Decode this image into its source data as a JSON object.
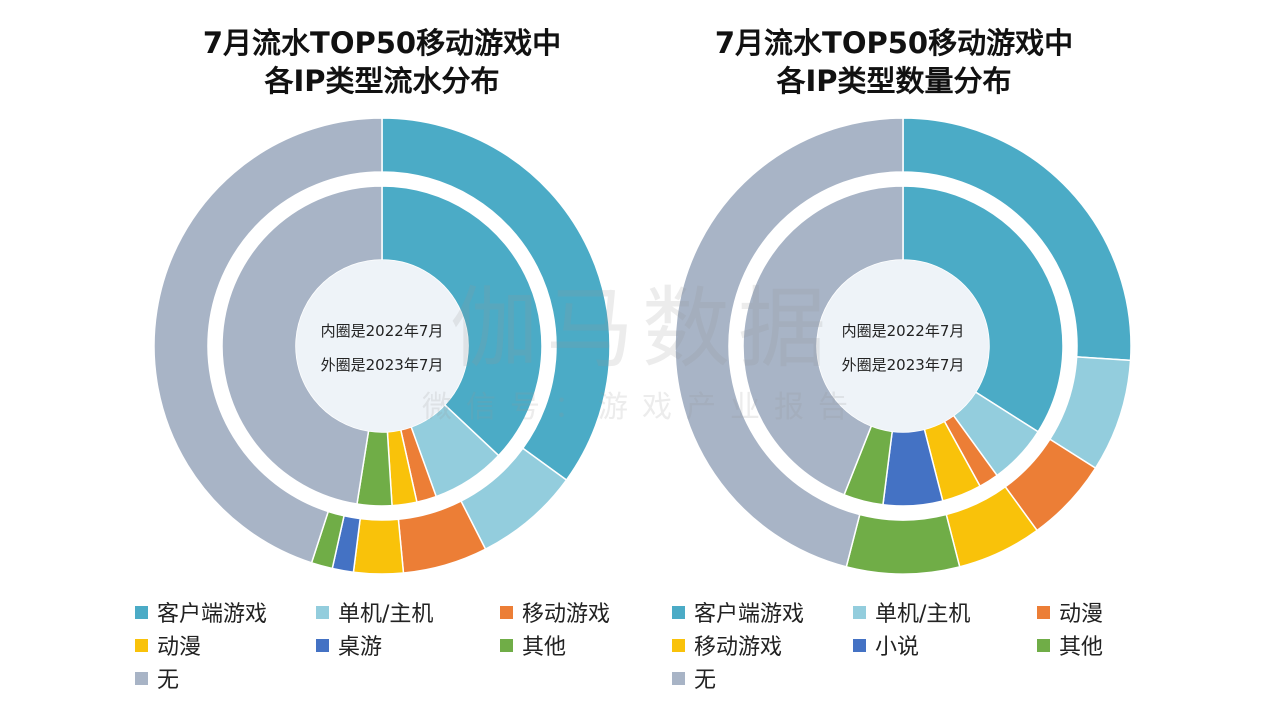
{
  "watermark": {
    "main": "伽马数据",
    "sub": "微信号：游戏产业报告"
  },
  "chart_data": [
    {
      "type": "donut",
      "title_line1": "7月流水TOP50移动游戏中",
      "title_line2": "各IP类型流水分布",
      "center_text": [
        "内圈是2022年7月",
        "外圈是2023年7月"
      ],
      "legend": [
        "客户端游戏",
        "单机/主机",
        "移动游戏",
        "动漫",
        "桌游",
        "其他",
        "无"
      ],
      "colors": [
        "#4BABC6",
        "#93CDDD",
        "#EC7E36",
        "#F9C20A",
        "#4472C4",
        "#70AD47",
        "#A8B4C6"
      ],
      "series": [
        {
          "name": "内圈是2022年7月",
          "labels": [
            "客户端游戏",
            "单机/主机",
            "移动游戏",
            "动漫",
            "桌游",
            "其他",
            "无"
          ],
          "values": [
            37.0,
            7.5,
            2.0,
            2.5,
            0,
            3.5,
            47.5
          ]
        },
        {
          "name": "外圈是2023年7月",
          "labels": [
            "客户端游戏",
            "单机/主机",
            "移动游戏",
            "动漫",
            "桌游",
            "其他",
            "无"
          ],
          "values": [
            35.0,
            7.5,
            6.0,
            3.5,
            1.5,
            1.5,
            45.0
          ]
        }
      ]
    },
    {
      "type": "donut",
      "title_line1": "7月流水TOP50移动游戏中",
      "title_line2": "各IP类型数量分布",
      "center_text": [
        "内圈是2022年7月",
        "外圈是2023年7月"
      ],
      "legend": [
        "客户端游戏",
        "单机/主机",
        "动漫",
        "移动游戏",
        "小说",
        "其他",
        "无"
      ],
      "colors": [
        "#4BABC6",
        "#93CDDD",
        "#EC7E36",
        "#F9C20A",
        "#4472C4",
        "#70AD47",
        "#A8B4C6"
      ],
      "series": [
        {
          "name": "内圈是2022年7月",
          "labels": [
            "客户端游戏",
            "单机/主机",
            "动漫",
            "移动游戏",
            "小说",
            "其他",
            "无"
          ],
          "values": [
            34.0,
            6.0,
            2.0,
            4.0,
            6.0,
            4.0,
            44.0
          ]
        },
        {
          "name": "外圈是2023年7月",
          "labels": [
            "客户端游戏",
            "单机/主机",
            "动漫",
            "移动游戏",
            "小说",
            "其他",
            "无"
          ],
          "values": [
            26.0,
            8.0,
            6.0,
            6.0,
            0,
            8.0,
            46.0
          ]
        }
      ]
    }
  ]
}
